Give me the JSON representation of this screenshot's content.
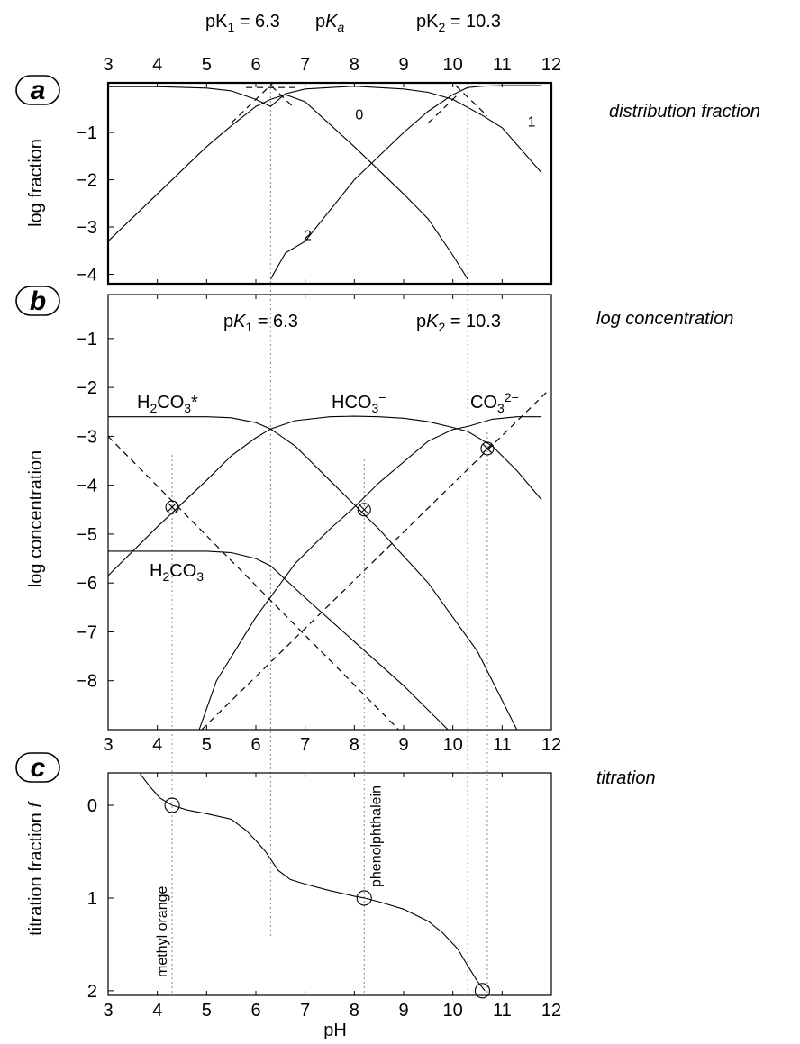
{
  "pK_labels": {
    "top_center": "pKa",
    "top_pK1": "pK1 = 6.3",
    "top_pK2": "pK2 = 10.3",
    "b_pK1": "pK1 = 6.3",
    "b_pK2": "pK2 = 10.3"
  },
  "chart_data": [
    {
      "id": "a",
      "type": "line",
      "panel_letter": "a",
      "side_label": "distribution fraction",
      "ylabel": "log fraction",
      "x_top_label": "pKa",
      "xlim": [
        3,
        12
      ],
      "ylim": [
        -4.2,
        0.05
      ],
      "x_ticks": [
        3,
        4,
        5,
        6,
        7,
        8,
        9,
        10,
        11,
        12
      ],
      "y_ticks": [
        -1,
        -2,
        -3,
        -4
      ],
      "y_tick_labels": [
        "−1",
        "−2",
        "−3",
        "−4"
      ],
      "pK1": 6.3,
      "pK2": 10.3,
      "curve_labels": [
        {
          "text": "0",
          "x": 8.1,
          "y": -0.72
        },
        {
          "text": "1",
          "x": 11.6,
          "y": -0.87
        },
        {
          "text": "2",
          "x": 7.05,
          "y": -3.28
        }
      ],
      "series": [
        {
          "label": "0",
          "x": [
            3.0,
            4.0,
            5.0,
            5.5,
            6.0,
            6.3,
            6.6,
            7.0,
            8.0,
            9.0,
            9.5,
            10.0,
            10.3
          ],
          "y": [
            -3.3,
            -2.3,
            -1.3,
            -0.86,
            -0.45,
            -0.3,
            -0.2,
            -0.35,
            -1.3,
            -2.3,
            -2.83,
            -3.6,
            -4.1
          ]
        },
        {
          "label": "1",
          "x": [
            3.0,
            4.0,
            5.0,
            5.5,
            6.0,
            6.3,
            6.6,
            7.0,
            8.0,
            9.0,
            9.5,
            10.0,
            10.3,
            10.6,
            11.0,
            11.8
          ],
          "y": [
            -0.03,
            -0.03,
            -0.06,
            -0.12,
            -0.3,
            -0.45,
            -0.18,
            -0.08,
            -0.02,
            -0.08,
            -0.15,
            -0.3,
            -0.47,
            -0.64,
            -0.9,
            -1.85
          ]
        },
        {
          "label": "2",
          "x": [
            6.3,
            6.6,
            7.0,
            8.0,
            9.0,
            9.5,
            10.0,
            10.3,
            10.6,
            11.0,
            11.8
          ],
          "y": [
            -4.1,
            -3.55,
            -3.3,
            -2.0,
            -1.0,
            -0.55,
            -0.2,
            -0.05,
            -0.02,
            -0.01,
            -0.01
          ]
        }
      ],
      "asymptotes": [
        {
          "x": [
            5.5,
            6.65
          ],
          "y": [
            -0.8,
            0.35
          ]
        },
        {
          "x": [
            5.8,
            6.8
          ],
          "y": [
            -0.05,
            -0.05
          ]
        },
        {
          "x": [
            6.0,
            6.8
          ],
          "y": [
            0.3,
            -0.5
          ]
        },
        {
          "x": [
            9.5,
            10.1
          ],
          "y": [
            -0.8,
            -0.2
          ]
        },
        {
          "x": [
            9.9,
            10.7
          ],
          "y": [
            0.15,
            -0.65
          ]
        }
      ]
    },
    {
      "id": "b",
      "type": "line",
      "panel_letter": "b",
      "side_label": "log concentration",
      "ylabel": "log concentration",
      "xlim": [
        3,
        12
      ],
      "ylim": [
        -9,
        -0.1
      ],
      "x_ticks": [
        3,
        4,
        5,
        6,
        7,
        8,
        9,
        10,
        11,
        12
      ],
      "y_ticks": [
        -1,
        -2,
        -3,
        -4,
        -5,
        -6,
        -7,
        -8
      ],
      "y_tick_labels": [
        "−1",
        "−2",
        "−3",
        "−4",
        "−5",
        "−6",
        "−7",
        "−8"
      ],
      "species_labels": [
        {
          "text": "H2CO3*",
          "x": 4.7,
          "y": -2.25
        },
        {
          "text": "HCO3−",
          "x": 8.15,
          "y": -2.25
        },
        {
          "text": "CO32−",
          "x": 11.05,
          "y": -2.25
        },
        {
          "text": "H2CO3",
          "x": 4.65,
          "y": -6.3
        }
      ],
      "series": [
        {
          "name": "H2CO3*",
          "x": [
            3.0,
            4.0,
            5.0,
            5.5,
            6.0,
            6.3,
            6.8,
            7.5,
            8.5,
            9.5,
            10.5,
            11.0,
            11.3
          ],
          "y": [
            -2.6,
            -2.6,
            -2.6,
            -2.62,
            -2.72,
            -2.85,
            -3.2,
            -3.9,
            -4.9,
            -6.0,
            -7.4,
            -8.4,
            -9.0
          ]
        },
        {
          "name": "HCO3−",
          "x": [
            3.0,
            4.0,
            5.0,
            5.5,
            6.0,
            6.3,
            6.8,
            7.5,
            8.0,
            8.5,
            9.0,
            9.5,
            10.0,
            10.3,
            10.8,
            11.3,
            11.8
          ],
          "y": [
            -5.85,
            -4.85,
            -3.9,
            -3.4,
            -3.03,
            -2.85,
            -2.68,
            -2.6,
            -2.59,
            -2.6,
            -2.63,
            -2.7,
            -2.82,
            -2.9,
            -3.2,
            -3.7,
            -4.3
          ]
        },
        {
          "name": "CO32−",
          "x": [
            4.85,
            5.2,
            6.0,
            6.8,
            7.5,
            8.0,
            8.5,
            9.5,
            10.0,
            10.3,
            10.8,
            11.3,
            11.8
          ],
          "y": [
            -9.0,
            -8.0,
            -6.7,
            -5.6,
            -4.9,
            -4.45,
            -3.95,
            -3.1,
            -2.86,
            -2.8,
            -2.65,
            -2.6,
            -2.6
          ]
        },
        {
          "name": "H2CO3",
          "x": [
            3.0,
            4.0,
            5.0,
            5.5,
            6.0,
            6.3,
            7.0,
            8.0,
            9.0,
            9.9
          ],
          "y": [
            -5.35,
            -5.35,
            -5.35,
            -5.38,
            -5.5,
            -5.65,
            -6.3,
            -7.2,
            -8.1,
            -9.0
          ]
        }
      ],
      "dashed_lines": [
        {
          "name": "H+",
          "x": [
            3.0,
            8.9
          ],
          "y": [
            -3.0,
            -9.0
          ]
        },
        {
          "name": "OH−",
          "x": [
            4.9,
            11.95
          ],
          "y": [
            -9.0,
            -2.05
          ]
        }
      ],
      "circle_points": [
        {
          "x": 4.3,
          "y": -4.45
        },
        {
          "x": 8.2,
          "y": -4.5
        },
        {
          "x": 10.7,
          "y": -3.25
        }
      ]
    },
    {
      "id": "c",
      "type": "line",
      "panel_letter": "c",
      "side_label": "titration",
      "ylabel": "titration fraction f",
      "xlabel": "pH",
      "xlim": [
        3,
        12
      ],
      "ylim": [
        -0.35,
        2.05
      ],
      "y_inverted": true,
      "x_ticks": [
        3,
        4,
        5,
        6,
        7,
        8,
        9,
        10,
        11,
        12
      ],
      "y_ticks": [
        0,
        1,
        2
      ],
      "indicators": [
        {
          "text": "methyl orange",
          "x": 4.3
        },
        {
          "text": "phenolphthalein",
          "x": 8.2
        }
      ],
      "series": [
        {
          "name": "titration curve",
          "x": [
            3.65,
            3.85,
            4.05,
            4.3,
            4.6,
            5.0,
            5.5,
            5.8,
            6.0,
            6.2,
            6.45,
            6.7,
            7.0,
            7.5,
            8.0,
            8.2,
            8.5,
            9.0,
            9.5,
            9.8,
            10.1,
            10.3,
            10.5,
            10.65
          ],
          "y": [
            -0.34,
            -0.2,
            -0.08,
            0.0,
            0.05,
            0.09,
            0.15,
            0.27,
            0.38,
            0.5,
            0.7,
            0.8,
            0.85,
            0.92,
            0.98,
            1.0,
            1.04,
            1.12,
            1.25,
            1.38,
            1.55,
            1.73,
            1.9,
            2.0
          ]
        }
      ],
      "circle_points": [
        {
          "x": 4.3,
          "y": 0.0
        },
        {
          "x": 8.2,
          "y": 1.0
        },
        {
          "x": 10.6,
          "y": 2.0
        }
      ]
    }
  ]
}
